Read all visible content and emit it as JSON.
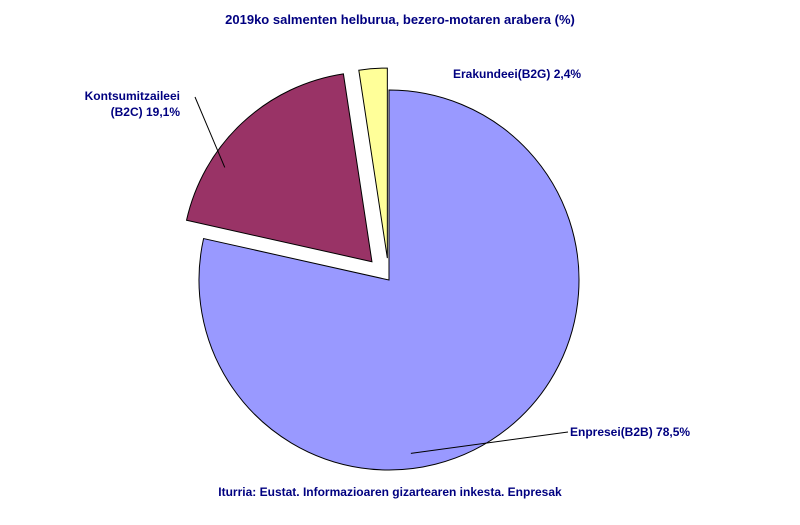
{
  "chart_data": {
    "type": "pie",
    "title": "2019ko salmenten helburua, bezero-motaren arabera (%)",
    "categories": [
      "Enpresei(B2B)",
      "Kontsumitzaileei (B2C)",
      "Erakundeei(B2G)"
    ],
    "values": [
      78.5,
      19.1,
      2.4
    ],
    "value_labels": [
      "78,5%",
      "19,1%",
      "2,4%"
    ],
    "colors": [
      "#9999ff",
      "#993366",
      "#ffff99"
    ],
    "source": "Iturria: Eustat. Informazioaren gizartearen inkesta. Enpresak"
  }
}
